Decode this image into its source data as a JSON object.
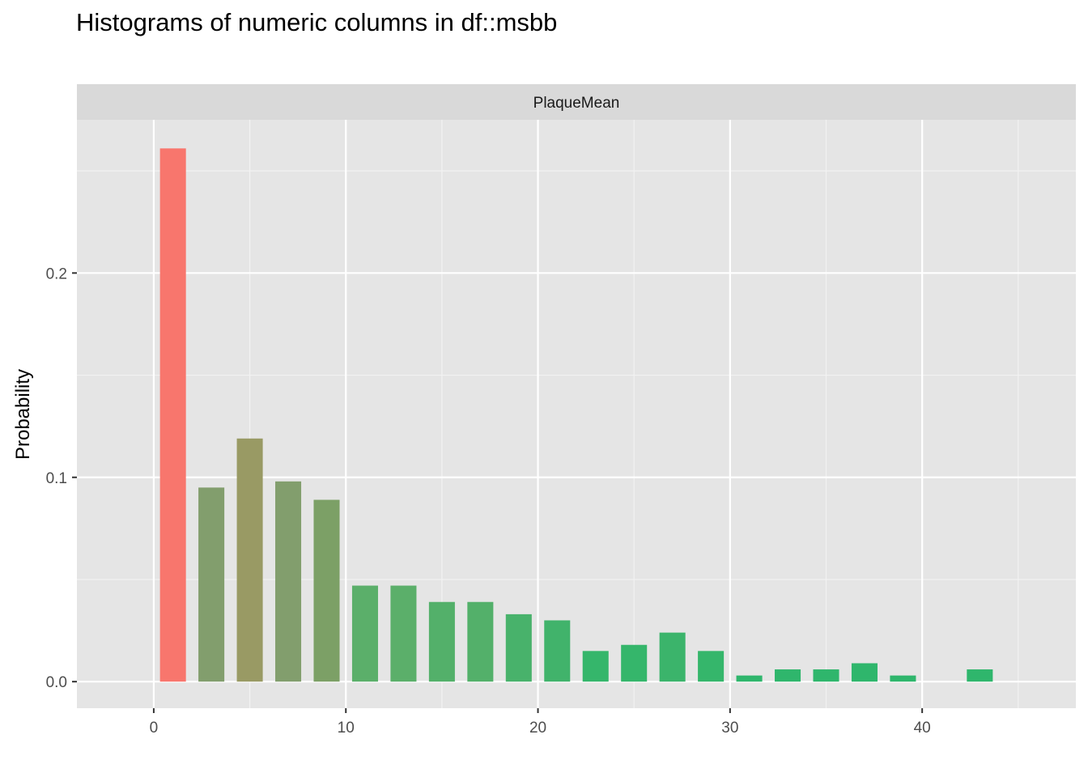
{
  "title": "Histograms of numeric columns in df::msbb",
  "chart_data": {
    "type": "bar",
    "facet": "PlaqueMean",
    "ylabel": "Probability",
    "xlabel": "",
    "xlim": [
      -4,
      48
    ],
    "ylim": [
      -0.013,
      0.275
    ],
    "x_ticks": [
      0,
      10,
      20,
      30,
      40
    ],
    "x_tick_labels": [
      "0",
      "10",
      "20",
      "30",
      "40"
    ],
    "y_ticks": [
      0.0,
      0.1,
      0.2
    ],
    "y_tick_labels": [
      "0.0",
      "0.1",
      "0.2"
    ],
    "bar_width": 1.35,
    "x": [
      1,
      3,
      5,
      7,
      9,
      11,
      13,
      15,
      17,
      19,
      21,
      23,
      25,
      27,
      29,
      31,
      33,
      35,
      37,
      39,
      43
    ],
    "values": [
      0.261,
      0.095,
      0.119,
      0.098,
      0.089,
      0.047,
      0.047,
      0.039,
      0.039,
      0.033,
      0.03,
      0.015,
      0.018,
      0.024,
      0.015,
      0.003,
      0.006,
      0.006,
      0.009,
      0.003,
      0.006
    ],
    "colors": [
      "#F8766D",
      "#829E6D",
      "#999A64",
      "#829E6D",
      "#7CA066",
      "#5BAF6A",
      "#5BAF6A",
      "#53B06A",
      "#53B06A",
      "#48B26B",
      "#41B36B",
      "#35B66B",
      "#35B66B",
      "#3BB46B",
      "#35B66B",
      "#2FB66C",
      "#2FB66C",
      "#2FB66C",
      "#2FB66C",
      "#2FB66C",
      "#2FB66C"
    ],
    "grid": true,
    "panel_background": "#E5E5E5",
    "strip_background": "#D9D9D9"
  }
}
